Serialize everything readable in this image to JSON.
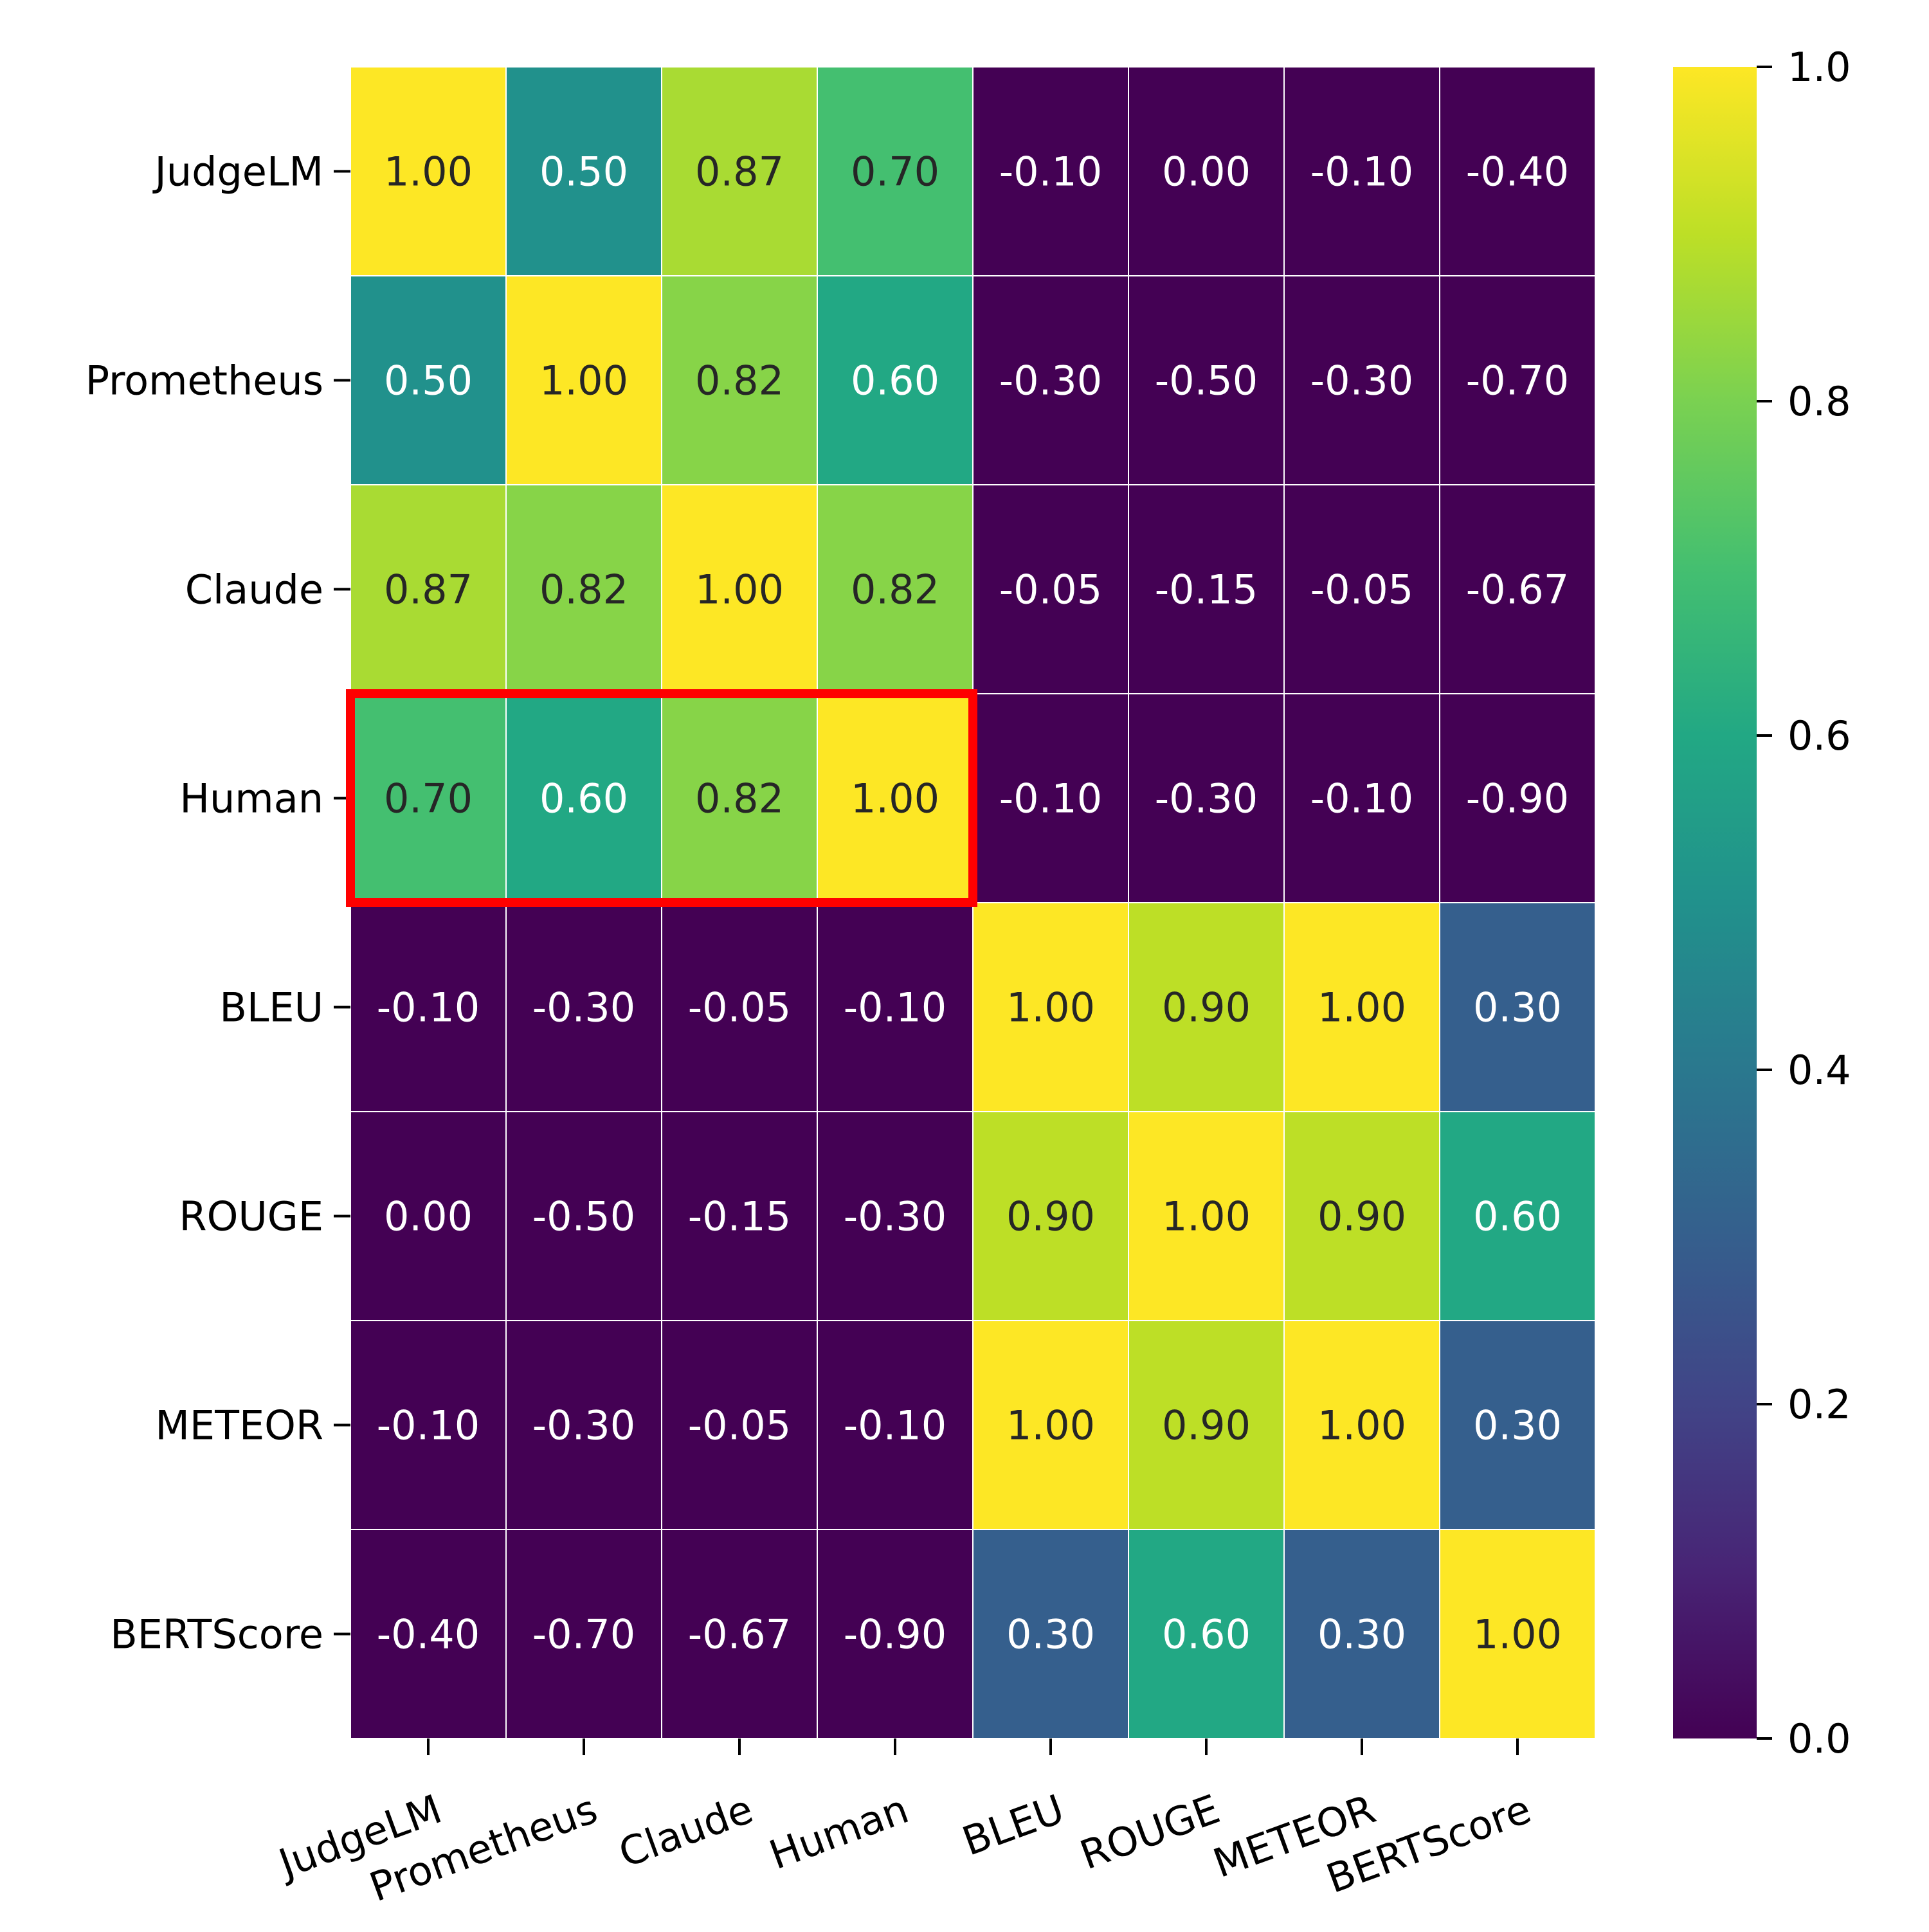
{
  "chart_data": {
    "type": "heatmap",
    "title": "",
    "rows": [
      "JudgeLM",
      "Prometheus",
      "Claude",
      "Human",
      "BLEU",
      "ROUGE",
      "METEOR",
      "BERTScore"
    ],
    "columns": [
      "JudgeLM",
      "Prometheus",
      "Claude",
      "Human",
      "BLEU",
      "ROUGE",
      "METEOR",
      "BERTScore"
    ],
    "values": [
      [
        1.0,
        0.5,
        0.87,
        0.7,
        -0.1,
        0.0,
        -0.1,
        -0.4
      ],
      [
        0.5,
        1.0,
        0.82,
        0.6,
        -0.3,
        -0.5,
        -0.3,
        -0.7
      ],
      [
        0.87,
        0.82,
        1.0,
        0.82,
        -0.05,
        -0.15,
        -0.05,
        -0.67
      ],
      [
        0.7,
        0.6,
        0.82,
        1.0,
        -0.1,
        -0.3,
        -0.1,
        -0.9
      ],
      [
        -0.1,
        -0.3,
        -0.05,
        -0.1,
        1.0,
        0.9,
        1.0,
        0.3
      ],
      [
        0.0,
        -0.5,
        -0.15,
        -0.3,
        0.9,
        1.0,
        0.9,
        0.6
      ],
      [
        -0.1,
        -0.3,
        -0.05,
        -0.1,
        1.0,
        0.9,
        1.0,
        0.3
      ],
      [
        -0.4,
        -0.7,
        -0.67,
        -0.9,
        0.3,
        0.6,
        0.3,
        1.0
      ]
    ],
    "annotation_format": "0.00",
    "colormap": "viridis",
    "vmin": 0.0,
    "vmax": 1.0,
    "colorbar_ticks": [
      "0.0",
      "0.2",
      "0.4",
      "0.6",
      "0.8",
      "1.0"
    ],
    "highlight": {
      "row_start": 3,
      "row_end": 3,
      "col_start": 0,
      "col_end": 3,
      "color": "#ff0000"
    },
    "xtick_rotation_deg": 20
  }
}
